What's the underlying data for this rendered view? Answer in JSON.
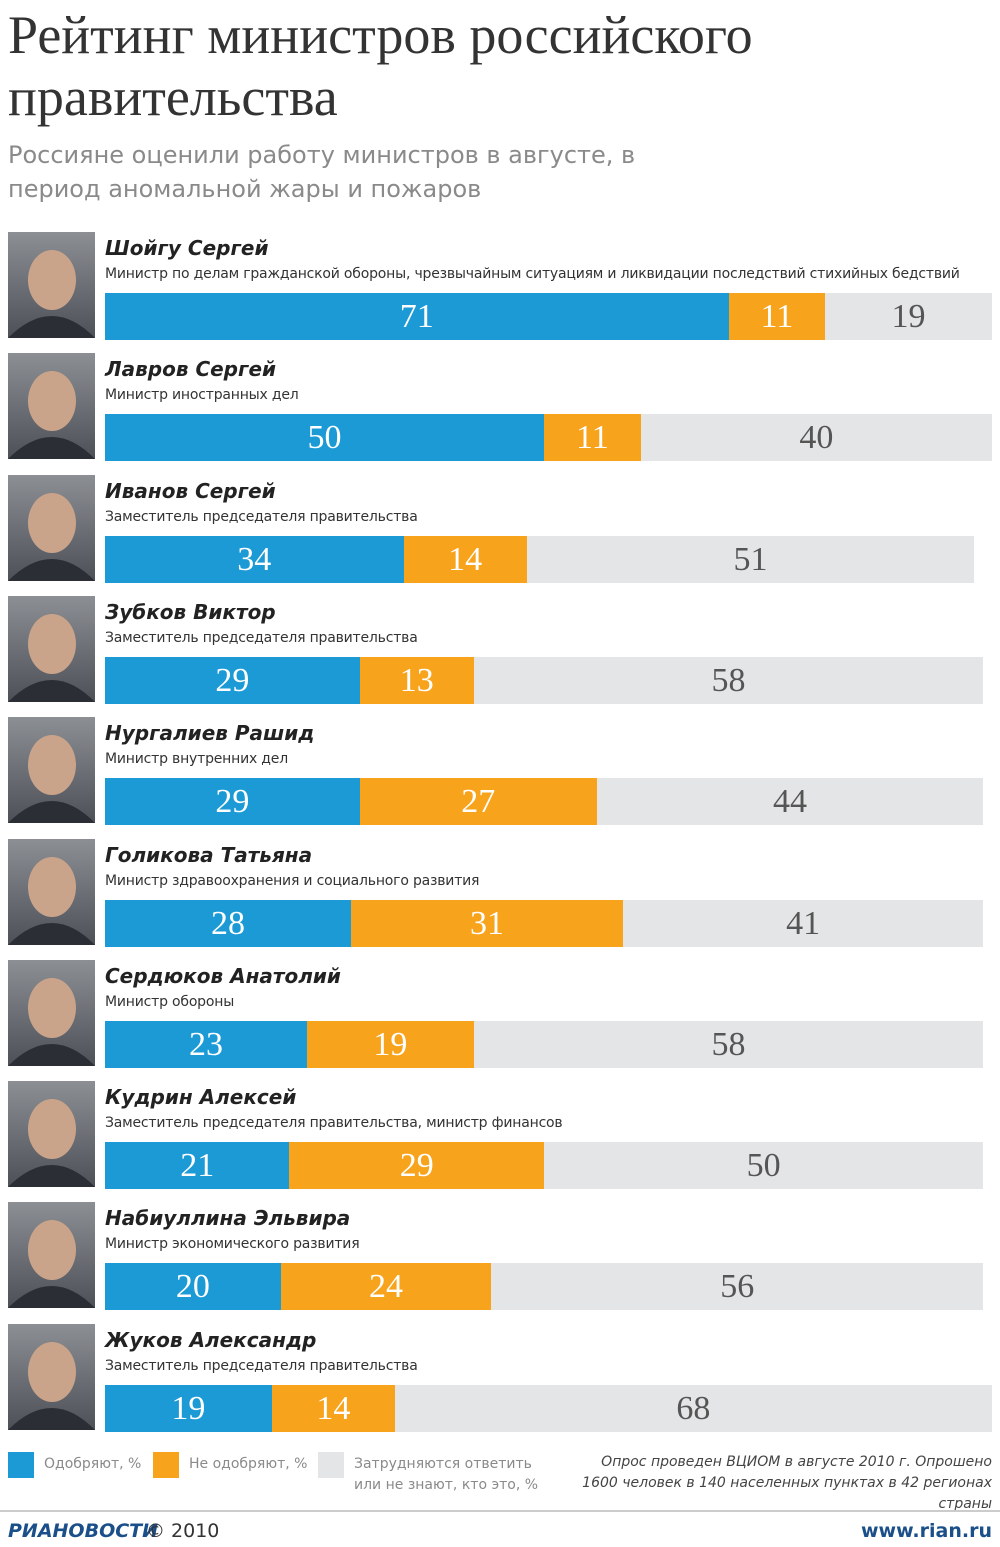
{
  "chart_data": {
    "type": "stacked-bar",
    "title": "Рейтинг министров российского правительства",
    "subtitle": "Россияне оценили работу министров в августе, в период аномальной жары и пожаров",
    "categories": [
      "Шойгу Сергей",
      "Лавров Сергей",
      "Иванов Сергей",
      "Зубков Виктор",
      "Нургалиев Рашид",
      "Голикова Татьяна",
      "Сердюков Анатолий",
      "Кудрин Алексей",
      "Набиуллина Эльвира",
      "Жуков Александр"
    ],
    "roles": [
      "Министр по делам гражданской обороны, чрезвычайным ситуациям и ликвидации последствий стихийных бедствий",
      "Министр иностранных дел",
      "Заместитель председателя правительства",
      "Заместитель председателя правительства",
      "Министр внутренних дел",
      "Министр здравоохранения и социального развития",
      "Министр обороны",
      "Заместитель председателя правительства, министр финансов",
      "Министр экономического развития",
      "Заместитель председателя правительства"
    ],
    "series": [
      {
        "name": "Одобряют, %",
        "color": "#1b9ad6",
        "values": [
          71,
          50,
          34,
          29,
          29,
          28,
          23,
          21,
          20,
          19
        ]
      },
      {
        "name": "Не одобряют, %",
        "color": "#f7a31c",
        "values": [
          11,
          11,
          14,
          13,
          27,
          31,
          19,
          29,
          24,
          14
        ]
      },
      {
        "name": "Затрудняются ответить или не знают, кто это, %",
        "color": "#e4e5e6",
        "values": [
          19,
          40,
          51,
          58,
          44,
          41,
          58,
          50,
          56,
          68
        ]
      }
    ],
    "note": "Опрос проведен ВЦИОМ в августе 2010 г. Опрошено 1600 человек в 140 населенных пунктах в 42 регионах страны",
    "source": "РИАНОВОСТИ",
    "copyright": "© 2010",
    "website": "www.rian.ru"
  }
}
